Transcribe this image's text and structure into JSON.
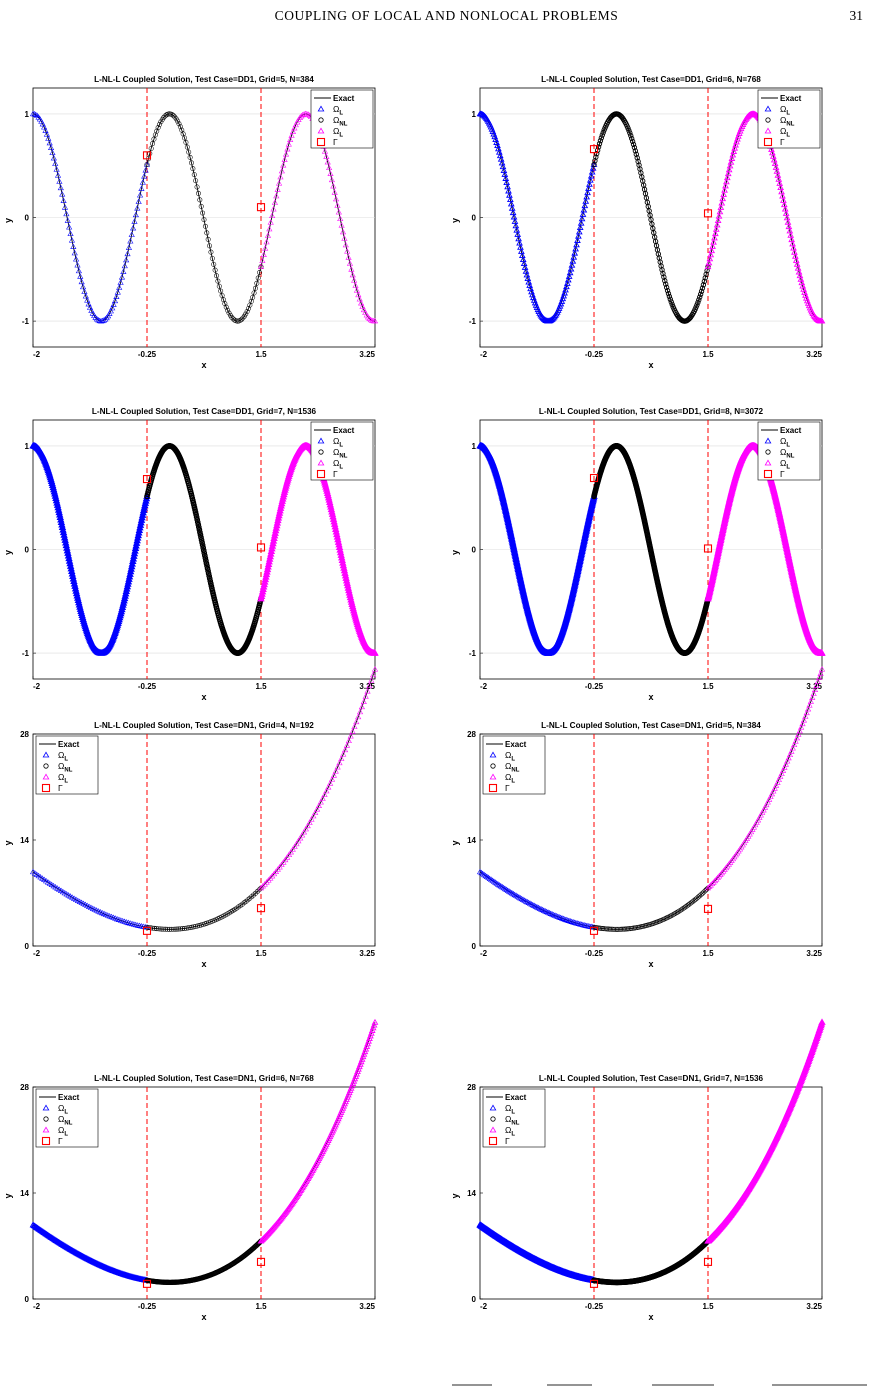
{
  "page": {
    "running_title": "COUPLING OF LOCAL AND NONLOCAL PROBLEMS",
    "page_number": "31"
  },
  "colors": {
    "exact": "#000000",
    "omega_l_left": "#0000ff",
    "omega_nl": "#000000",
    "omega_l_right": "#ff00ff",
    "interface": "#ff0000",
    "grid": "#dddddd"
  },
  "icons": {
    "omega_l_left": "triangle-marker",
    "omega_nl": "circle-marker",
    "omega_l_right": "triangle-marker",
    "interface": "square-marker"
  },
  "legend": [
    {
      "key": "exact",
      "label": "Exact",
      "sub": ""
    },
    {
      "key": "omega_l_left",
      "label": "Ω",
      "sub": "L"
    },
    {
      "key": "omega_nl",
      "label": "Ω",
      "sub": "NL"
    },
    {
      "key": "omega_l_right",
      "label": "Ω",
      "sub": "L"
    },
    {
      "key": "interface",
      "label": "Γ",
      "sub": ""
    }
  ],
  "chart_data": [
    {
      "type": "scatter",
      "title": "L-NL-L Coupled Solution, Test Case=DD1, Grid=5, N=384",
      "test_case": "DD1",
      "N": 384,
      "xlabel": "x",
      "ylabel": "y",
      "xlim": [
        -2,
        3.25
      ],
      "ylim": [
        -1.25,
        1.25
      ],
      "xticks": [
        "-2",
        "-0.25",
        "1.5",
        "3.25"
      ],
      "yticks": [
        "-1",
        "0",
        "1"
      ],
      "interfaces": [
        -0.25,
        1.5
      ],
      "legend_position": "top-right",
      "grid": "horizontal",
      "series": [
        {
          "key": "exact"
        },
        {
          "key": "omega_l_left",
          "x_range": [
            -2,
            -0.25
          ]
        },
        {
          "key": "omega_nl",
          "x_range": [
            -0.25,
            1.5
          ]
        },
        {
          "key": "omega_l_right",
          "x_range": [
            1.5,
            3.25
          ]
        },
        {
          "key": "interface",
          "points": [
            [
              -0.25,
              0.6
            ],
            [
              1.5,
              0.1
            ]
          ]
        }
      ]
    },
    {
      "type": "scatter",
      "title": "L-NL-L Coupled Solution, Test Case=DD1, Grid=6, N=768",
      "test_case": "DD1",
      "N": 768,
      "xlabel": "x",
      "ylabel": "y",
      "xlim": [
        -2,
        3.25
      ],
      "ylim": [
        -1.25,
        1.25
      ],
      "xticks": [
        "-2",
        "-0.25",
        "1.5",
        "3.25"
      ],
      "yticks": [
        "-1",
        "0",
        "1"
      ],
      "interfaces": [
        -0.25,
        1.5
      ],
      "legend_position": "top-right",
      "grid": "horizontal",
      "series": [
        {
          "key": "exact"
        },
        {
          "key": "omega_l_left",
          "x_range": [
            -2,
            -0.25
          ]
        },
        {
          "key": "omega_nl",
          "x_range": [
            -0.25,
            1.5
          ]
        },
        {
          "key": "omega_l_right",
          "x_range": [
            1.5,
            3.25
          ]
        },
        {
          "key": "interface",
          "points": [
            [
              -0.25,
              0.66
            ],
            [
              1.5,
              0.04
            ]
          ]
        }
      ]
    },
    {
      "type": "scatter",
      "title": "L-NL-L Coupled Solution, Test Case=DD1, Grid=7, N=1536",
      "test_case": "DD1",
      "N": 1536,
      "xlabel": "x",
      "ylabel": "y",
      "xlim": [
        -2,
        3.25
      ],
      "ylim": [
        -1.25,
        1.25
      ],
      "xticks": [
        "-2",
        "-0.25",
        "1.5",
        "3.25"
      ],
      "yticks": [
        "-1",
        "0",
        "1"
      ],
      "interfaces": [
        -0.25,
        1.5
      ],
      "legend_position": "top-right",
      "grid": "horizontal",
      "series": [
        {
          "key": "exact"
        },
        {
          "key": "omega_l_left",
          "x_range": [
            -2,
            -0.25
          ]
        },
        {
          "key": "omega_nl",
          "x_range": [
            -0.25,
            1.5
          ]
        },
        {
          "key": "omega_l_right",
          "x_range": [
            1.5,
            3.25
          ]
        },
        {
          "key": "interface",
          "points": [
            [
              -0.25,
              0.68
            ],
            [
              1.5,
              0.02
            ]
          ]
        }
      ]
    },
    {
      "type": "scatter",
      "title": "L-NL-L Coupled Solution, Test Case=DD1, Grid=8, N=3072",
      "test_case": "DD1",
      "N": 3072,
      "xlabel": "x",
      "ylabel": "y",
      "xlim": [
        -2,
        3.25
      ],
      "ylim": [
        -1.25,
        1.25
      ],
      "xticks": [
        "-2",
        "-0.25",
        "1.5",
        "3.25"
      ],
      "yticks": [
        "-1",
        "0",
        "1"
      ],
      "interfaces": [
        -0.25,
        1.5
      ],
      "legend_position": "top-right",
      "grid": "horizontal",
      "series": [
        {
          "key": "exact"
        },
        {
          "key": "omega_l_left",
          "x_range": [
            -2,
            -0.25
          ]
        },
        {
          "key": "omega_nl",
          "x_range": [
            -0.25,
            1.5
          ]
        },
        {
          "key": "omega_l_right",
          "x_range": [
            1.5,
            3.25
          ]
        },
        {
          "key": "interface",
          "points": [
            [
              -0.25,
              0.69
            ],
            [
              1.5,
              0.01
            ]
          ]
        }
      ]
    },
    {
      "type": "scatter",
      "title": "L-NL-L Coupled Solution, Test Case=DN1, Grid=4, N=192",
      "test_case": "DN1",
      "N": 192,
      "xlabel": "x",
      "ylabel": "y",
      "xlim": [
        -2,
        3.25
      ],
      "ylim": [
        0,
        28
      ],
      "xticks": [
        "-2",
        "-0.25",
        "1.5",
        "3.25"
      ],
      "yticks": [
        "0",
        "14",
        "28"
      ],
      "interfaces": [
        -0.25,
        1.5
      ],
      "legend_position": "top-left",
      "grid": "none",
      "series": [
        {
          "key": "exact"
        },
        {
          "key": "omega_l_left",
          "x_range": [
            -2,
            -0.25
          ]
        },
        {
          "key": "omega_nl",
          "x_range": [
            -0.25,
            1.5
          ]
        },
        {
          "key": "omega_l_right",
          "x_range": [
            1.5,
            3.25
          ]
        },
        {
          "key": "interface",
          "points": [
            [
              -0.25,
              2.0
            ],
            [
              1.5,
              5.0
            ]
          ]
        }
      ]
    },
    {
      "type": "scatter",
      "title": "L-NL-L Coupled Solution, Test Case=DN1, Grid=5, N=384",
      "test_case": "DN1",
      "N": 384,
      "xlabel": "x",
      "ylabel": "y",
      "xlim": [
        -2,
        3.25
      ],
      "ylim": [
        0,
        28
      ],
      "xticks": [
        "-2",
        "-0.25",
        "1.5",
        "3.25"
      ],
      "yticks": [
        "0",
        "14",
        "28"
      ],
      "interfaces": [
        -0.25,
        1.5
      ],
      "legend_position": "top-left",
      "grid": "none",
      "series": [
        {
          "key": "exact"
        },
        {
          "key": "omega_l_left",
          "x_range": [
            -2,
            -0.25
          ]
        },
        {
          "key": "omega_nl",
          "x_range": [
            -0.25,
            1.5
          ]
        },
        {
          "key": "omega_l_right",
          "x_range": [
            1.5,
            3.25
          ]
        },
        {
          "key": "interface",
          "points": [
            [
              -0.25,
              2.0
            ],
            [
              1.5,
              4.9
            ]
          ]
        }
      ]
    },
    {
      "type": "scatter",
      "title": "L-NL-L Coupled Solution, Test Case=DN1, Grid=6, N=768",
      "test_case": "DN1",
      "N": 768,
      "xlabel": "x",
      "ylabel": "y",
      "xlim": [
        -2,
        3.25
      ],
      "ylim": [
        0,
        28
      ],
      "xticks": [
        "-2",
        "-0.25",
        "1.5",
        "3.25"
      ],
      "yticks": [
        "0",
        "14",
        "28"
      ],
      "interfaces": [
        -0.25,
        1.5
      ],
      "legend_position": "top-left",
      "grid": "none",
      "series": [
        {
          "key": "exact"
        },
        {
          "key": "omega_l_left",
          "x_range": [
            -2,
            -0.25
          ]
        },
        {
          "key": "omega_nl",
          "x_range": [
            -0.25,
            1.5
          ]
        },
        {
          "key": "omega_l_right",
          "x_range": [
            1.5,
            3.25
          ]
        },
        {
          "key": "interface",
          "points": [
            [
              -0.25,
              2.0
            ],
            [
              1.5,
              4.9
            ]
          ]
        }
      ]
    },
    {
      "type": "scatter",
      "title": "L-NL-L Coupled Solution, Test Case=DN1, Grid=7, N=1536",
      "test_case": "DN1",
      "N": 1536,
      "xlabel": "x",
      "ylabel": "y",
      "xlim": [
        -2,
        3.25
      ],
      "ylim": [
        0,
        28
      ],
      "xticks": [
        "-2",
        "-0.25",
        "1.5",
        "3.25"
      ],
      "yticks": [
        "0",
        "14",
        "28"
      ],
      "interfaces": [
        -0.25,
        1.5
      ],
      "legend_position": "top-left",
      "grid": "none",
      "series": [
        {
          "key": "exact"
        },
        {
          "key": "omega_l_left",
          "x_range": [
            -2,
            -0.25
          ]
        },
        {
          "key": "omega_nl",
          "x_range": [
            -0.25,
            1.5
          ]
        },
        {
          "key": "omega_l_right",
          "x_range": [
            1.5,
            3.25
          ]
        },
        {
          "key": "interface",
          "points": [
            [
              -0.25,
              2.0
            ],
            [
              1.5,
              4.9
            ]
          ]
        }
      ]
    }
  ]
}
